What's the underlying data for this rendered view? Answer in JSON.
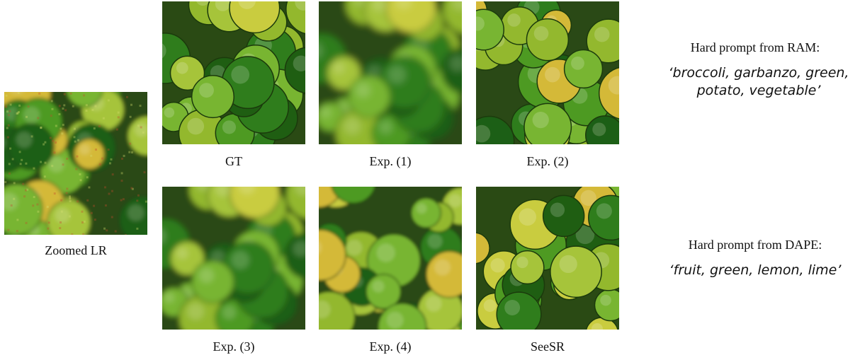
{
  "lr": {
    "caption": "Zoomed LR"
  },
  "panels": [
    {
      "caption": "GT"
    },
    {
      "caption": "Exp. (1)"
    },
    {
      "caption": "Exp. (2)"
    },
    {
      "caption": "Exp. (3)"
    },
    {
      "caption": "Exp. (4)"
    },
    {
      "caption": "SeeSR"
    }
  ],
  "prompts": [
    {
      "title": "Hard prompt from RAM:",
      "text": "‘broccoli, garbanzo, green, potato, vegetable’"
    },
    {
      "title": "Hard prompt from DAPE:",
      "text": "‘fruit, green, lemon, lime’"
    }
  ]
}
